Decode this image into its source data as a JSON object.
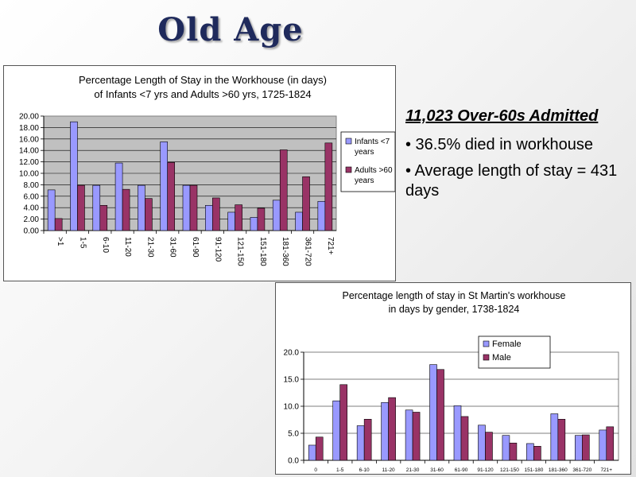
{
  "slide": {
    "title": "Old Age",
    "heading": "11,023 Over-60s Admitted",
    "bullets": [
      "• 36.5% died in workhouse",
      "• Average length of stay = 431 days"
    ]
  },
  "chart_data": [
    {
      "type": "bar",
      "title": "Percentage Length of Stay in the Workhouse (in days)",
      "subtitle": "of Infants <7 yrs and Adults >60 yrs, 1725-1824",
      "categories": [
        ">1",
        "1-5",
        "6-10",
        "11-20",
        "21-30",
        "31-60",
        "61-90",
        "91-120",
        "121-150",
        "151-180",
        "181-360",
        "361-720",
        "721+"
      ],
      "series": [
        {
          "name": "Infants <7 years",
          "legend_lines": [
            "Infants <7",
            "years"
          ],
          "color": "#9999ff",
          "values": [
            7.1,
            19.0,
            7.9,
            11.8,
            7.9,
            15.5,
            7.9,
            4.4,
            3.2,
            2.3,
            5.3,
            3.2,
            5.1
          ]
        },
        {
          "name": "Adults >60 years",
          "legend_lines": [
            "Adults >60",
            "years"
          ],
          "color": "#993366",
          "values": [
            2.1,
            7.9,
            4.4,
            7.2,
            5.6,
            11.9,
            7.9,
            5.7,
            4.5,
            3.9,
            14.1,
            9.4,
            15.3
          ]
        }
      ],
      "ylim": [
        0,
        20
      ],
      "yticks": [
        "0.00",
        "2.00",
        "4.00",
        "6.00",
        "8.00",
        "10.00",
        "12.00",
        "14.00",
        "16.00",
        "18.00",
        "20.00"
      ],
      "grid": true,
      "plot_background": "#c0c0c0",
      "legend": "right"
    },
    {
      "type": "bar",
      "title": "Percentage length of stay in St Martin's workhouse",
      "subtitle": "in days by gender, 1738-1824",
      "categories": [
        "0",
        "1-5",
        "6-10",
        "11-20",
        "21-30",
        "31-60",
        "61-90",
        "91-120",
        "121-150",
        "151-180",
        "181-360",
        "361-720",
        "721+"
      ],
      "series": [
        {
          "name": "Female",
          "color": "#9999ff",
          "values": [
            2.8,
            11.0,
            6.4,
            10.7,
            9.3,
            17.7,
            10.1,
            6.5,
            4.6,
            3.1,
            8.6,
            4.6,
            5.6
          ]
        },
        {
          "name": "Male",
          "color": "#993366",
          "values": [
            4.3,
            14.0,
            7.6,
            11.6,
            8.9,
            16.8,
            8.1,
            5.2,
            3.2,
            2.6,
            7.6,
            4.7,
            6.2
          ]
        }
      ],
      "ylim": [
        0,
        20
      ],
      "yticks": [
        "0.0",
        "5.0",
        "10.0",
        "15.0",
        "20.0"
      ],
      "grid": true,
      "plot_background": "#ffffff",
      "legend": "top-center"
    }
  ]
}
